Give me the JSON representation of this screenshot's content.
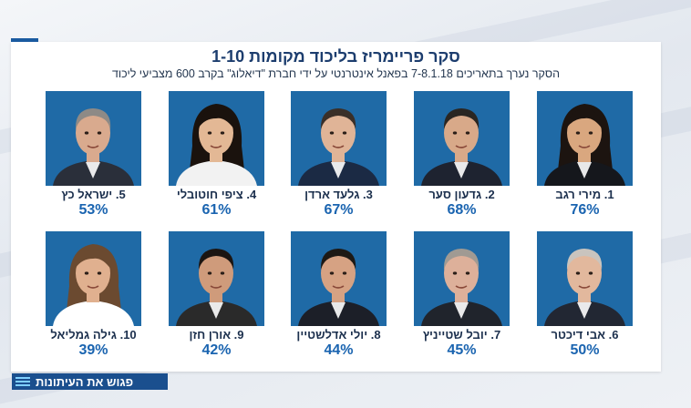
{
  "title": "סקר פריימריז בליכוד מקומות 1-10",
  "subtitle": "הסקר נערך בתאריכים 7-8.1.18 בפאנל אינטרנטי על ידי חברת \"דיאלוג\" בקרב 600 מצביעי ליכוד",
  "candidates": [
    {
      "label": "1. מירי רגב",
      "percent": "76%",
      "skin": "#d9a77f",
      "hair": "#1c1410",
      "suit": "#15171c",
      "hair_style": "long"
    },
    {
      "label": "2. גדעון סער",
      "percent": "68%",
      "skin": "#d8a989",
      "hair": "#2a2622",
      "suit": "#1e2330",
      "hair_style": "short"
    },
    {
      "label": "3. גלעד ארדן",
      "percent": "67%",
      "skin": "#e0b497",
      "hair": "#3a2f28",
      "suit": "#1b2a44",
      "hair_style": "short"
    },
    {
      "label": "4. ציפי חוטובלי",
      "percent": "61%",
      "skin": "#e3b895",
      "hair": "#1a120d",
      "suit": "#f2f2f2",
      "hair_style": "long"
    },
    {
      "label": "5. ישראל כץ",
      "percent": "53%",
      "skin": "#d9aa8e",
      "hair": "#8e8a86",
      "suit": "#2a2f3a",
      "hair_style": "short"
    },
    {
      "label": "6. אבי דיכטר",
      "percent": "50%",
      "skin": "#e2b89d",
      "hair": "#c9c4be",
      "suit": "#222733",
      "hair_style": "short"
    },
    {
      "label": "7. יובל שטייניץ",
      "percent": "45%",
      "skin": "#ddb09a",
      "hair": "#a09a93",
      "suit": "#20242c",
      "hair_style": "short"
    },
    {
      "label": "8. יולי אדלשטיין",
      "percent": "44%",
      "skin": "#d6a283",
      "hair": "#1d1915",
      "suit": "#1c1f28",
      "hair_style": "short"
    },
    {
      "label": "9. אורן חזן",
      "percent": "42%",
      "skin": "#cf9b7b",
      "hair": "#1b1512",
      "suit": "#2a2a2a",
      "hair_style": "short"
    },
    {
      "label": "10. גילה גמליאל",
      "percent": "39%",
      "skin": "#e0b08f",
      "hair": "#6b4a30",
      "suit": "#ffffff",
      "hair_style": "long"
    }
  ],
  "footer": {
    "label": "פגוש את העיתונות",
    "icon": "menu-lines-icon"
  },
  "colors": {
    "photo_bg": "#1f6aa6",
    "title": "#1c3d6e",
    "percent": "#1a64b0",
    "footer_bg": "#1a4f8e"
  }
}
